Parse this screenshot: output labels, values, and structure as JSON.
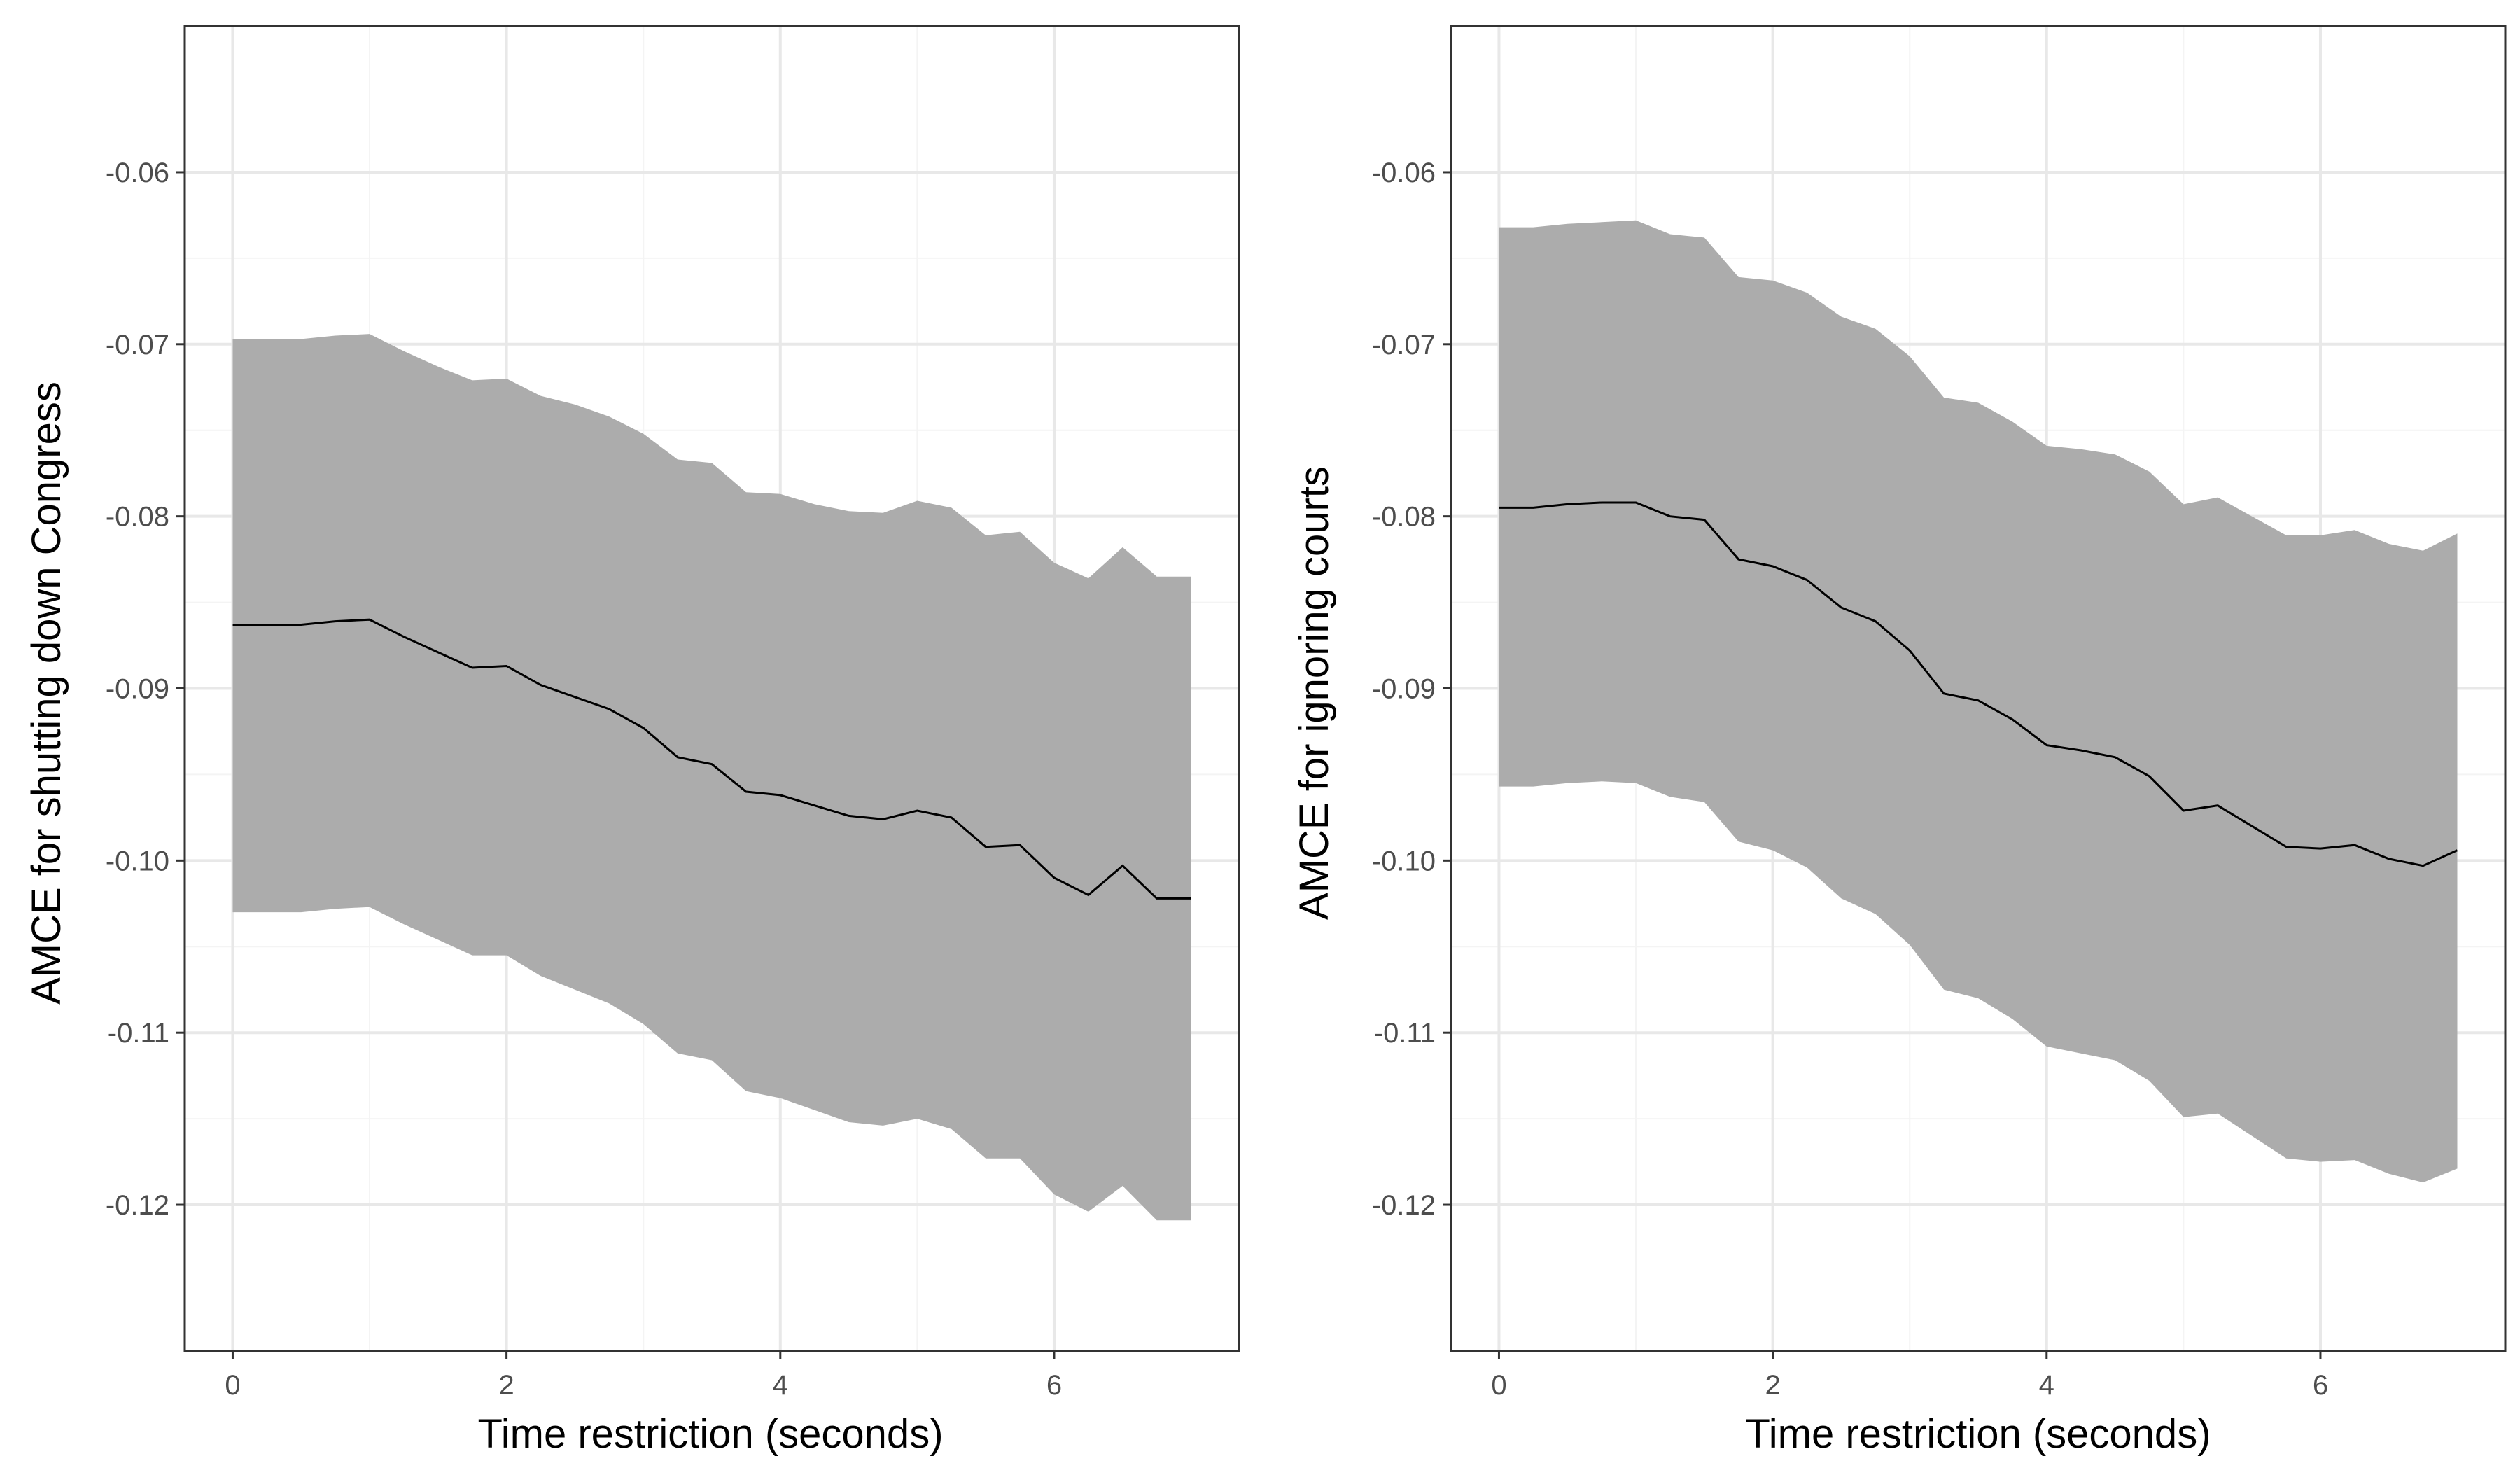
{
  "colors": {
    "band": "#acacac",
    "line": "#000000",
    "grid_major": "#e8e8e8",
    "grid_minor": "#f4f4f4",
    "panel_border": "#333333",
    "tick_text": "#4d4d4d"
  },
  "chart_data": [
    {
      "type": "line",
      "xlabel": "Time restriction (seconds)",
      "ylabel": "AMCE for shutting down Congress",
      "xlim": [
        -0.35,
        7.35
      ],
      "ylim": [
        -0.1285,
        -0.0515
      ],
      "xticks": [
        0,
        2,
        4,
        6
      ],
      "xtick_labels": [
        "0",
        "2",
        "4",
        "6"
      ],
      "yticks": [
        -0.06,
        -0.07,
        -0.08,
        -0.09,
        -0.1,
        -0.11,
        -0.12
      ],
      "ytick_labels": [
        "-0.06",
        "-0.07",
        "-0.08",
        "-0.09",
        "-0.10",
        "-0.11",
        "-0.12"
      ],
      "grid": true,
      "x": [
        0,
        0.25,
        0.5,
        0.75,
        1,
        1.25,
        1.5,
        1.75,
        2,
        2.25,
        2.5,
        2.75,
        3,
        3.25,
        3.5,
        3.75,
        4,
        4.25,
        4.5,
        4.75,
        5,
        5.25,
        5.5,
        5.75,
        6,
        6.25,
        6.5,
        6.75,
        7
      ],
      "estimate": [
        -0.0863,
        -0.0863,
        -0.0863,
        -0.0861,
        -0.086,
        -0.087,
        -0.0879,
        -0.0888,
        -0.0887,
        -0.0898,
        -0.0905,
        -0.0912,
        -0.0923,
        -0.094,
        -0.0944,
        -0.096,
        -0.0962,
        -0.0968,
        -0.0974,
        -0.0976,
        -0.0971,
        -0.0975,
        -0.0992,
        -0.0991,
        -0.101,
        -0.102,
        -0.1003,
        -0.1022,
        -0.1022
      ],
      "upper": [
        -0.0697,
        -0.0697,
        -0.0697,
        -0.0695,
        -0.0694,
        -0.0704,
        -0.0713,
        -0.0721,
        -0.072,
        -0.073,
        -0.0735,
        -0.0742,
        -0.0752,
        -0.0767,
        -0.0769,
        -0.0786,
        -0.0787,
        -0.0793,
        -0.0797,
        -0.0798,
        -0.0791,
        -0.0795,
        -0.0811,
        -0.0809,
        -0.0827,
        -0.0836,
        -0.0818,
        -0.0835,
        -0.0835
      ],
      "lower": [
        -0.103,
        -0.103,
        -0.103,
        -0.1028,
        -0.1027,
        -0.1037,
        -0.1046,
        -0.1055,
        -0.1055,
        -0.1067,
        -0.1075,
        -0.1083,
        -0.1095,
        -0.1112,
        -0.1116,
        -0.1134,
        -0.1138,
        -0.1145,
        -0.1152,
        -0.1154,
        -0.115,
        -0.1156,
        -0.1173,
        -0.1173,
        -0.1194,
        -0.1204,
        -0.1189,
        -0.1209,
        -0.1209
      ]
    },
    {
      "type": "line",
      "xlabel": "Time restriction (seconds)",
      "ylabel": "AMCE for ignoring courts",
      "xlim": [
        -0.35,
        7.35
      ],
      "ylim": [
        -0.1285,
        -0.0515
      ],
      "xticks": [
        0,
        2,
        4,
        6
      ],
      "xtick_labels": [
        "0",
        "2",
        "4",
        "6"
      ],
      "yticks": [
        -0.06,
        -0.07,
        -0.08,
        -0.09,
        -0.1,
        -0.11,
        -0.12
      ],
      "ytick_labels": [
        "-0.06",
        "-0.07",
        "-0.08",
        "-0.09",
        "-0.10",
        "-0.11",
        "-0.12"
      ],
      "grid": true,
      "x": [
        0,
        0.25,
        0.5,
        0.75,
        1,
        1.25,
        1.5,
        1.75,
        2,
        2.25,
        2.5,
        2.75,
        3,
        3.25,
        3.5,
        3.75,
        4,
        4.25,
        4.5,
        4.75,
        5,
        5.25,
        5.5,
        5.75,
        6,
        6.25,
        6.5,
        6.75,
        7
      ],
      "estimate": [
        -0.0795,
        -0.0795,
        -0.0793,
        -0.0792,
        -0.0792,
        -0.08,
        -0.0802,
        -0.0825,
        -0.0829,
        -0.0837,
        -0.0853,
        -0.0861,
        -0.0878,
        -0.0903,
        -0.0907,
        -0.0918,
        -0.0933,
        -0.0936,
        -0.094,
        -0.0951,
        -0.0971,
        -0.0968,
        -0.098,
        -0.0992,
        -0.0993,
        -0.0991,
        -0.0999,
        -0.1003,
        -0.0994
      ],
      "upper": [
        -0.0632,
        -0.0632,
        -0.063,
        -0.0629,
        -0.0628,
        -0.0636,
        -0.0638,
        -0.0661,
        -0.0663,
        -0.067,
        -0.0684,
        -0.0691,
        -0.0707,
        -0.0731,
        -0.0734,
        -0.0745,
        -0.0759,
        -0.0761,
        -0.0764,
        -0.0774,
        -0.0793,
        -0.0789,
        -0.08,
        -0.0811,
        -0.0811,
        -0.0808,
        -0.0816,
        -0.082,
        -0.081
      ],
      "lower": [
        -0.0957,
        -0.0957,
        -0.0955,
        -0.0954,
        -0.0955,
        -0.0963,
        -0.0966,
        -0.0989,
        -0.0994,
        -0.1004,
        -0.1022,
        -0.1031,
        -0.1049,
        -0.1075,
        -0.108,
        -0.1092,
        -0.1108,
        -0.1112,
        -0.1116,
        -0.1128,
        -0.1149,
        -0.1147,
        -0.116,
        -0.1173,
        -0.1175,
        -0.1174,
        -0.1182,
        -0.1187,
        -0.1179
      ]
    }
  ]
}
